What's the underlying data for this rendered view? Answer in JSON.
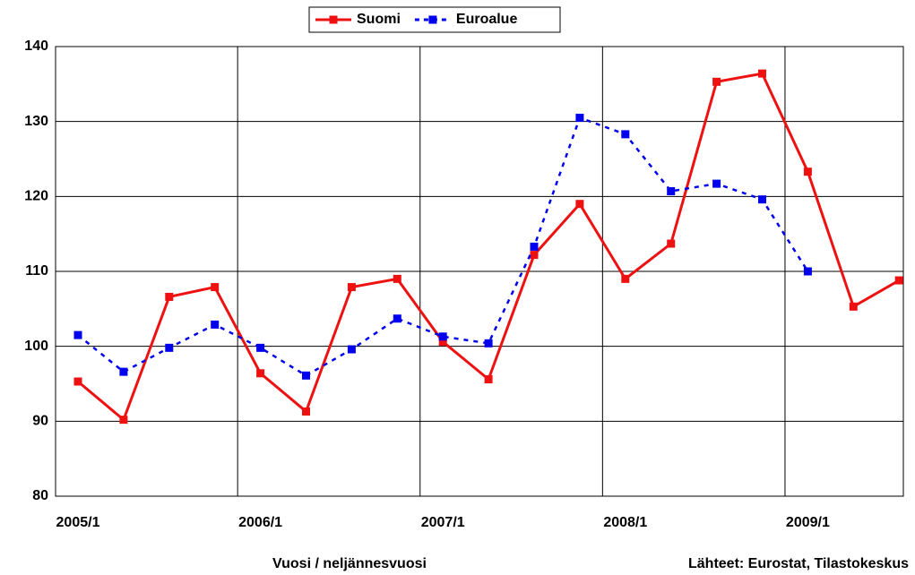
{
  "chart_data": {
    "type": "line",
    "categories": [
      "2005/1",
      null,
      null,
      null,
      "2006/1",
      null,
      null,
      null,
      "2007/1",
      null,
      null,
      null,
      "2008/1",
      null,
      null,
      null,
      "2009/1",
      null,
      null
    ],
    "series": [
      {
        "name": "Suomi",
        "color": "#ee1111",
        "dash": false,
        "values": [
          95.3,
          90.2,
          106.6,
          107.9,
          96.4,
          91.3,
          107.9,
          109.0,
          100.6,
          95.6,
          112.2,
          119.0,
          109.0,
          113.7,
          135.3,
          136.4,
          123.3,
          105.3,
          108.8
        ]
      },
      {
        "name": "Euroalue",
        "color": "#0000ee",
        "dash": true,
        "values": [
          101.5,
          96.6,
          99.8,
          102.9,
          99.8,
          96.1,
          99.6,
          103.7,
          101.3,
          100.4,
          113.3,
          130.5,
          128.3,
          120.7,
          121.7,
          119.6,
          110.0,
          null,
          null
        ]
      }
    ],
    "ylim": [
      80,
      140
    ],
    "yticks": [
      80,
      90,
      100,
      110,
      120,
      130,
      140
    ],
    "grid": true,
    "x_label": "Vuosi / neljännesvuosi",
    "annotation": "Lähteet: Eurostat, Tilastokeskus",
    "legend": "top"
  }
}
